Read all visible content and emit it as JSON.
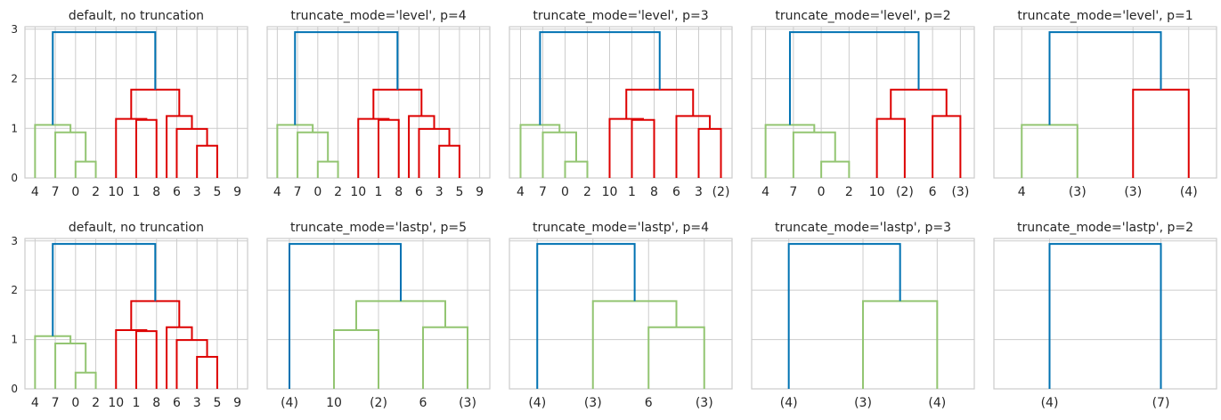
{
  "colors": {
    "above": "#0072b2",
    "c1": "#93c572",
    "c2": "#dd0000",
    "grid": "#cccccc"
  },
  "chart_data": [
    {
      "type": "dendrogram",
      "title": "default, no truncation",
      "ylim": [
        0,
        3.05
      ],
      "yticks": [
        "0",
        "1",
        "2",
        "3"
      ],
      "grid": true,
      "leaves": [
        "4",
        "7",
        "0",
        "2",
        "10",
        "1",
        "8",
        "6",
        "3",
        "5",
        "9"
      ],
      "links": [
        {
          "x": [
            8,
            9
          ],
          "h": 0.65,
          "ch": [
            0,
            0
          ],
          "c": "c2"
        },
        {
          "x": [
            2,
            3
          ],
          "h": 0.33,
          "ch": [
            0,
            0
          ],
          "c": "c1"
        },
        {
          "x": [
            7,
            8.5
          ],
          "h": 0.99,
          "ch": [
            0,
            0.65
          ],
          "c": "c2"
        },
        {
          "x": [
            5,
            6
          ],
          "h": 1.17,
          "ch": [
            0,
            0
          ],
          "c": "c2"
        },
        {
          "x": [
            4,
            5.5
          ],
          "h": 1.19,
          "ch": [
            0,
            1.17
          ],
          "c": "c2"
        },
        {
          "x": [
            1,
            2.5
          ],
          "h": 0.92,
          "ch": [
            0,
            0.33
          ],
          "c": "c1"
        },
        {
          "x": [
            0,
            1.75
          ],
          "h": 1.07,
          "ch": [
            0,
            0.92
          ],
          "c": "c1"
        },
        {
          "x": [
            6.5,
            7.75
          ],
          "h": 1.25,
          "ch": [
            0,
            0.99
          ],
          "c": "c2"
        },
        {
          "x": [
            4.75,
            7.125
          ],
          "h": 1.78,
          "ch": [
            1.19,
            1.25
          ],
          "c": "c2"
        },
        {
          "x": [
            0.875,
            5.9375
          ],
          "h": 2.94,
          "ch": [
            1.07,
            1.78
          ],
          "c": "above"
        }
      ]
    },
    {
      "type": "dendrogram",
      "title": "truncate_mode='level', p=4",
      "ylim": [
        0,
        3.05
      ],
      "yticks": [],
      "grid": true,
      "leaves": [
        "4",
        "7",
        "0",
        "2",
        "10",
        "1",
        "8",
        "6",
        "3",
        "5",
        "9"
      ],
      "links": [
        {
          "x": [
            8,
            9
          ],
          "h": 0.65,
          "ch": [
            0,
            0
          ],
          "c": "c2"
        },
        {
          "x": [
            2,
            3
          ],
          "h": 0.33,
          "ch": [
            0,
            0
          ],
          "c": "c1"
        },
        {
          "x": [
            7,
            8.5
          ],
          "h": 0.99,
          "ch": [
            0,
            0.65
          ],
          "c": "c2"
        },
        {
          "x": [
            5,
            6
          ],
          "h": 1.17,
          "ch": [
            0,
            0
          ],
          "c": "c2"
        },
        {
          "x": [
            4,
            5.5
          ],
          "h": 1.19,
          "ch": [
            0,
            1.17
          ],
          "c": "c2"
        },
        {
          "x": [
            1,
            2.5
          ],
          "h": 0.92,
          "ch": [
            0,
            0.33
          ],
          "c": "c1"
        },
        {
          "x": [
            0,
            1.75
          ],
          "h": 1.07,
          "ch": [
            0,
            0.92
          ],
          "c": "c1"
        },
        {
          "x": [
            6.5,
            7.75
          ],
          "h": 1.25,
          "ch": [
            0,
            0.99
          ],
          "c": "c2"
        },
        {
          "x": [
            4.75,
            7.125
          ],
          "h": 1.78,
          "ch": [
            1.19,
            1.25
          ],
          "c": "c2"
        },
        {
          "x": [
            0.875,
            5.9375
          ],
          "h": 2.94,
          "ch": [
            1.07,
            1.78
          ],
          "c": "above"
        }
      ]
    },
    {
      "type": "dendrogram",
      "title": "truncate_mode='level', p=3",
      "ylim": [
        0,
        3.05
      ],
      "yticks": [],
      "grid": true,
      "leaves": [
        "4",
        "7",
        "0",
        "2",
        "10",
        "1",
        "8",
        "6",
        "3",
        "(2)"
      ],
      "links": [
        {
          "x": [
            2,
            3
          ],
          "h": 0.33,
          "ch": [
            0,
            0
          ],
          "c": "c1"
        },
        {
          "x": [
            8,
            9
          ],
          "h": 0.99,
          "ch": [
            0,
            0
          ],
          "c": "c2"
        },
        {
          "x": [
            5,
            6
          ],
          "h": 1.17,
          "ch": [
            0,
            0
          ],
          "c": "c2"
        },
        {
          "x": [
            4,
            5.5
          ],
          "h": 1.19,
          "ch": [
            0,
            1.17
          ],
          "c": "c2"
        },
        {
          "x": [
            1,
            2.5
          ],
          "h": 0.92,
          "ch": [
            0,
            0.33
          ],
          "c": "c1"
        },
        {
          "x": [
            0,
            1.75
          ],
          "h": 1.07,
          "ch": [
            0,
            0.92
          ],
          "c": "c1"
        },
        {
          "x": [
            7,
            8.5
          ],
          "h": 1.25,
          "ch": [
            0,
            0.99
          ],
          "c": "c2"
        },
        {
          "x": [
            4.75,
            7.75
          ],
          "h": 1.78,
          "ch": [
            1.19,
            1.25
          ],
          "c": "c2"
        },
        {
          "x": [
            0.875,
            6.25
          ],
          "h": 2.94,
          "ch": [
            1.07,
            1.78
          ],
          "c": "above"
        }
      ]
    },
    {
      "type": "dendrogram",
      "title": "truncate_mode='level', p=2",
      "ylim": [
        0,
        3.05
      ],
      "yticks": [],
      "grid": true,
      "leaves": [
        "4",
        "7",
        "0",
        "2",
        "10",
        "(2)",
        "6",
        "(3)"
      ],
      "links": [
        {
          "x": [
            2,
            3
          ],
          "h": 0.33,
          "ch": [
            0,
            0
          ],
          "c": "c1"
        },
        {
          "x": [
            1,
            2.5
          ],
          "h": 0.92,
          "ch": [
            0,
            0.33
          ],
          "c": "c1"
        },
        {
          "x": [
            0,
            1.75
          ],
          "h": 1.07,
          "ch": [
            0,
            0.92
          ],
          "c": "c1"
        },
        {
          "x": [
            4,
            5
          ],
          "h": 1.19,
          "ch": [
            0,
            0
          ],
          "c": "c2"
        },
        {
          "x": [
            6,
            7
          ],
          "h": 1.25,
          "ch": [
            0,
            0
          ],
          "c": "c2"
        },
        {
          "x": [
            4.5,
            6.5
          ],
          "h": 1.78,
          "ch": [
            1.19,
            1.25
          ],
          "c": "c2"
        },
        {
          "x": [
            0.875,
            5.5
          ],
          "h": 2.94,
          "ch": [
            1.07,
            1.78
          ],
          "c": "above"
        }
      ]
    },
    {
      "type": "dendrogram",
      "title": "truncate_mode='level', p=1",
      "ylim": [
        0,
        3.05
      ],
      "yticks": [],
      "grid": true,
      "leaves": [
        "4",
        "(3)",
        "(3)",
        "(4)"
      ],
      "links": [
        {
          "x": [
            0,
            1
          ],
          "h": 1.07,
          "ch": [
            0,
            0
          ],
          "c": "c1"
        },
        {
          "x": [
            2,
            3
          ],
          "h": 1.78,
          "ch": [
            0,
            0
          ],
          "c": "c2"
        },
        {
          "x": [
            0.5,
            2.5
          ],
          "h": 2.94,
          "ch": [
            1.07,
            1.78
          ],
          "c": "above"
        }
      ]
    },
    {
      "type": "dendrogram",
      "title": "default, no truncation",
      "ylim": [
        0,
        3.05
      ],
      "yticks": [
        "0",
        "1",
        "2",
        "3"
      ],
      "grid": true,
      "leaves": [
        "4",
        "7",
        "0",
        "2",
        "10",
        "1",
        "8",
        "6",
        "3",
        "5",
        "9"
      ],
      "links": [
        {
          "x": [
            8,
            9
          ],
          "h": 0.65,
          "ch": [
            0,
            0
          ],
          "c": "c2"
        },
        {
          "x": [
            2,
            3
          ],
          "h": 0.33,
          "ch": [
            0,
            0
          ],
          "c": "c1"
        },
        {
          "x": [
            7,
            8.5
          ],
          "h": 0.99,
          "ch": [
            0,
            0.65
          ],
          "c": "c2"
        },
        {
          "x": [
            5,
            6
          ],
          "h": 1.17,
          "ch": [
            0,
            0
          ],
          "c": "c2"
        },
        {
          "x": [
            4,
            5.5
          ],
          "h": 1.19,
          "ch": [
            0,
            1.17
          ],
          "c": "c2"
        },
        {
          "x": [
            1,
            2.5
          ],
          "h": 0.92,
          "ch": [
            0,
            0.33
          ],
          "c": "c1"
        },
        {
          "x": [
            0,
            1.75
          ],
          "h": 1.07,
          "ch": [
            0,
            0.92
          ],
          "c": "c1"
        },
        {
          "x": [
            6.5,
            7.75
          ],
          "h": 1.25,
          "ch": [
            0,
            0.99
          ],
          "c": "c2"
        },
        {
          "x": [
            4.75,
            7.125
          ],
          "h": 1.78,
          "ch": [
            1.19,
            1.25
          ],
          "c": "c2"
        },
        {
          "x": [
            0.875,
            5.9375
          ],
          "h": 2.94,
          "ch": [
            1.07,
            1.78
          ],
          "c": "above"
        }
      ]
    },
    {
      "type": "dendrogram",
      "title": "truncate_mode='lastp', p=5",
      "ylim": [
        0,
        3.05
      ],
      "yticks": [],
      "grid": true,
      "leaves": [
        "(4)",
        "10",
        "(2)",
        "6",
        "(3)"
      ],
      "links": [
        {
          "x": [
            1,
            2
          ],
          "h": 1.19,
          "ch": [
            0,
            0
          ],
          "c": "c1"
        },
        {
          "x": [
            3,
            4
          ],
          "h": 1.25,
          "ch": [
            0,
            0
          ],
          "c": "c1"
        },
        {
          "x": [
            1.5,
            3.5
          ],
          "h": 1.78,
          "ch": [
            1.19,
            1.25
          ],
          "c": "c1"
        },
        {
          "x": [
            0,
            2.5
          ],
          "h": 2.94,
          "ch": [
            0,
            1.78
          ],
          "c": "above"
        }
      ]
    },
    {
      "type": "dendrogram",
      "title": "truncate_mode='lastp', p=4",
      "ylim": [
        0,
        3.05
      ],
      "yticks": [],
      "grid": true,
      "leaves": [
        "(4)",
        "(3)",
        "6",
        "(3)"
      ],
      "links": [
        {
          "x": [
            2,
            3
          ],
          "h": 1.25,
          "ch": [
            0,
            0
          ],
          "c": "c1"
        },
        {
          "x": [
            1,
            2.5
          ],
          "h": 1.78,
          "ch": [
            0,
            1.25
          ],
          "c": "c1"
        },
        {
          "x": [
            0,
            1.75
          ],
          "h": 2.94,
          "ch": [
            0,
            1.78
          ],
          "c": "above"
        }
      ]
    },
    {
      "type": "dendrogram",
      "title": "truncate_mode='lastp', p=3",
      "ylim": [
        0,
        3.05
      ],
      "yticks": [],
      "grid": true,
      "leaves": [
        "(4)",
        "(3)",
        "(4)"
      ],
      "links": [
        {
          "x": [
            1,
            2
          ],
          "h": 1.78,
          "ch": [
            0,
            0
          ],
          "c": "c1"
        },
        {
          "x": [
            0,
            1.5
          ],
          "h": 2.94,
          "ch": [
            0,
            1.78
          ],
          "c": "above"
        }
      ]
    },
    {
      "type": "dendrogram",
      "title": "truncate_mode='lastp', p=2",
      "ylim": [
        0,
        3.05
      ],
      "yticks": [],
      "grid": true,
      "leaves": [
        "(4)",
        "(7)"
      ],
      "links": [
        {
          "x": [
            0,
            1
          ],
          "h": 2.94,
          "ch": [
            0,
            0
          ],
          "c": "above"
        }
      ]
    }
  ]
}
